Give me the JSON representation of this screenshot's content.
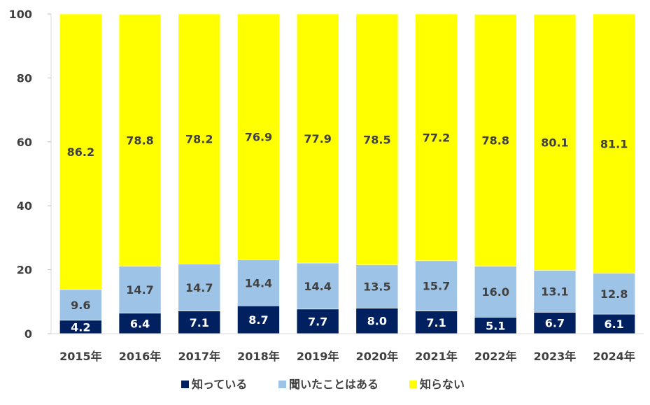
{
  "chart_data": {
    "type": "bar",
    "stacked": true,
    "categories": [
      "2015年",
      "2016年",
      "2017年",
      "2018年",
      "2019年",
      "2020年",
      "2021年",
      "2022年",
      "2023年",
      "2024年"
    ],
    "series": [
      {
        "name": "知っている",
        "color": "#002060",
        "label_color": "#ffffff",
        "values": [
          4.2,
          6.4,
          7.1,
          8.7,
          7.7,
          8.0,
          7.1,
          5.1,
          6.7,
          6.1
        ]
      },
      {
        "name": "聞いたことはある",
        "color": "#9dc3e6",
        "label_color": "#404040",
        "values": [
          9.6,
          14.7,
          14.7,
          14.4,
          14.4,
          13.5,
          15.7,
          16.0,
          13.1,
          12.8
        ]
      },
      {
        "name": "知らない",
        "color": "#ffff00",
        "label_color": "#404040",
        "values": [
          86.2,
          78.8,
          78.2,
          76.9,
          77.9,
          78.5,
          77.2,
          78.8,
          80.1,
          81.1
        ]
      }
    ],
    "value_labels": [
      [
        "4.2",
        "6.4",
        "7.1",
        "8.7",
        "7.7",
        "8.0",
        "7.1",
        "5.1",
        "6.7",
        "6.1"
      ],
      [
        "9.6",
        "14.7",
        "14.7",
        "14.4",
        "14.4",
        "13.5",
        "15.7",
        "16.0",
        "13.1",
        "12.8"
      ],
      [
        "86.2",
        "78.8",
        "78.2",
        "76.9",
        "77.9",
        "78.5",
        "77.2",
        "78.8",
        "80.1",
        "81.1"
      ]
    ],
    "ylim": [
      0,
      100
    ],
    "yticks": [
      "0",
      "20",
      "40",
      "60",
      "80",
      "100"
    ],
    "grid": false,
    "legend_position": "bottom",
    "title": "",
    "xlabel": "",
    "ylabel": ""
  }
}
